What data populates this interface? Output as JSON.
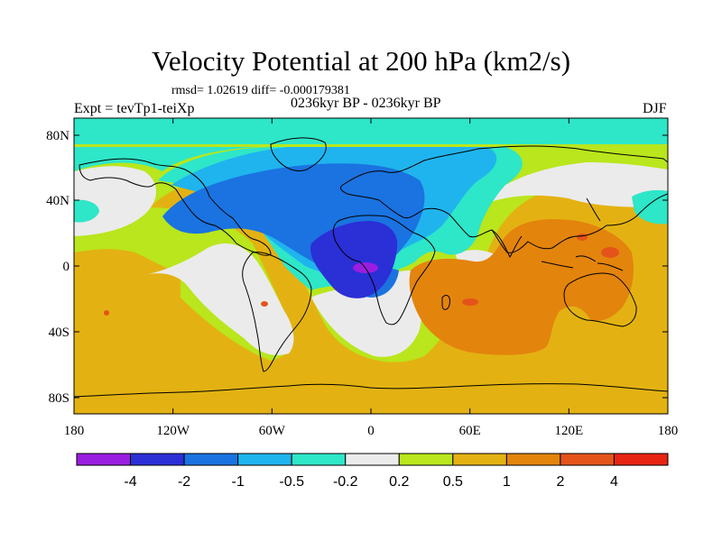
{
  "title": "Velocity Potential at 200 hPa (km2/s)",
  "stats": "rmsd= 1.02619 diff= -0.000179381",
  "experiment": "Expt = tevTp1-teiXp",
  "period": "0236kyr BP - 0236kyr BP",
  "season": "DJF",
  "colors": {
    "levels": [
      "#9a1ee0",
      "#2b2fd6",
      "#1a73e0",
      "#1fb4ee",
      "#2ee6c8",
      "#ebebeb",
      "#b9e61c",
      "#e3b212",
      "#e3840d",
      "#e4541a",
      "#e82412"
    ],
    "coast": "#000000",
    "frame": "#000000"
  },
  "map": {
    "lat_labels": [
      "80N",
      "40N",
      "0",
      "40S",
      "80S"
    ],
    "lon_labels": [
      "180",
      "120W",
      "60W",
      "0",
      "60E",
      "120E",
      "180"
    ]
  },
  "colorbar": {
    "labels": [
      "-4",
      "-2",
      "-1",
      "-0.5",
      "-0.2",
      "0.2",
      "0.5",
      "1",
      "2",
      "4"
    ]
  }
}
